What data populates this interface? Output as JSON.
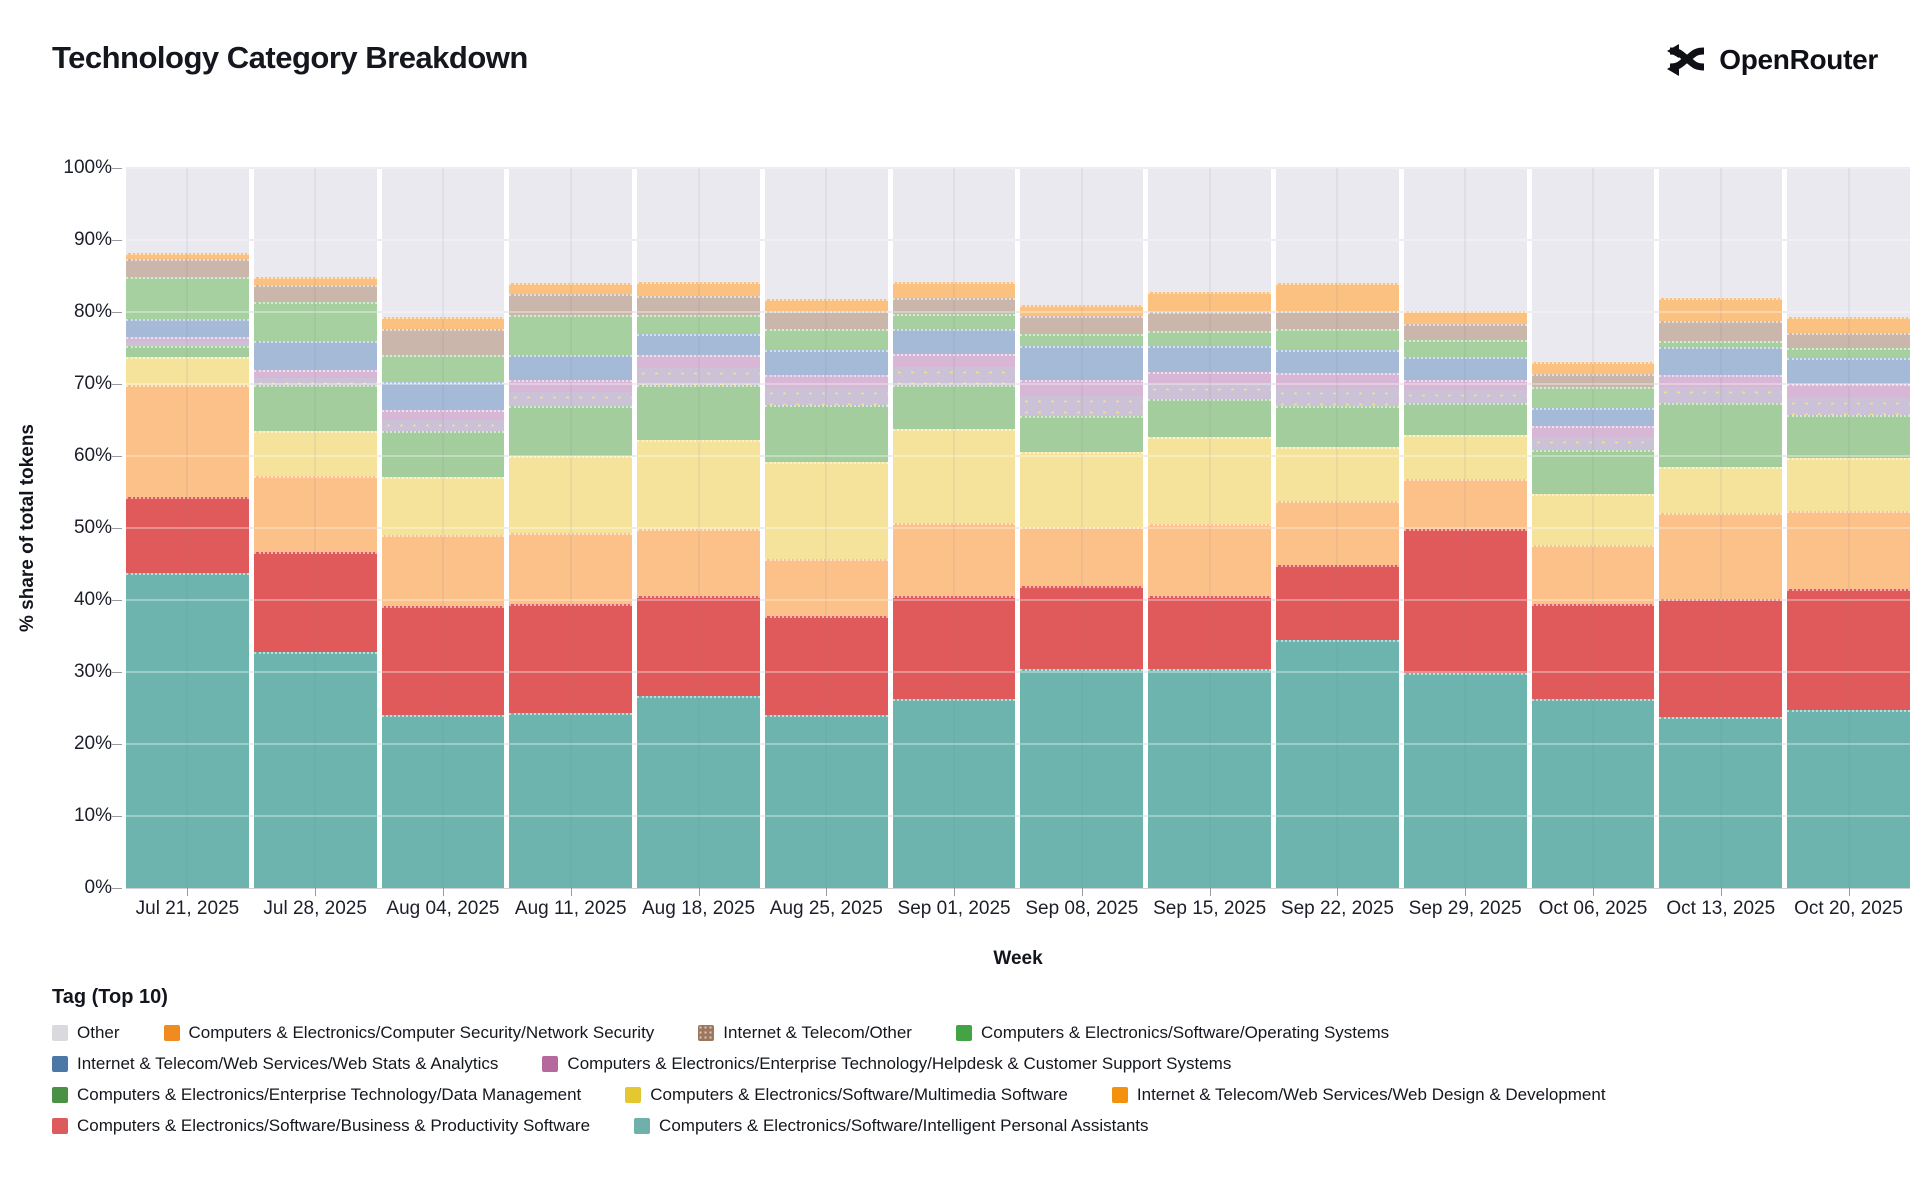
{
  "header": {
    "title": "Technology Category Breakdown",
    "brand": "OpenRouter"
  },
  "chart_data": {
    "type": "bar",
    "stacked": true,
    "unit": "percent",
    "title": "Technology Category Breakdown",
    "xlabel": "Week",
    "ylabel": "% share of total tokens",
    "ylim": [
      0,
      100
    ],
    "yticks": [
      "0%",
      "10%",
      "20%",
      "30%",
      "40%",
      "50%",
      "60%",
      "70%",
      "80%",
      "90%",
      "100%"
    ],
    "grid": true,
    "legend_position": "bottom",
    "categories": [
      "Jul 21, 2025",
      "Jul 28, 2025",
      "Aug 04, 2025",
      "Aug 11, 2025",
      "Aug 18, 2025",
      "Aug 25, 2025",
      "Sep 01, 2025",
      "Sep 08, 2025",
      "Sep 15, 2025",
      "Sep 22, 2025",
      "Sep 29, 2025",
      "Oct 06, 2025",
      "Oct 13, 2025",
      "Oct 20, 2025"
    ],
    "series": [
      {
        "id": "ipa",
        "name": "Computers & Electronics/Software/Intelligent Personal Assistants",
        "bar_color": "#6db4ae",
        "legend_color": "#6fb0ab",
        "values": [
          43.7,
          32.8,
          24.0,
          24.3,
          26.6,
          24.0,
          26.2,
          30.4,
          30.4,
          34.5,
          29.9,
          26.3,
          23.7,
          24.7
        ]
      },
      {
        "id": "bizprod",
        "name": "Computers & Electronics/Software/Business & Productivity Software",
        "bar_color": "#e05a5b",
        "legend_color": "#dd5b5c",
        "values": [
          10.6,
          13.9,
          15.1,
          15.2,
          14.0,
          13.8,
          14.4,
          11.5,
          10.2,
          10.4,
          19.9,
          13.2,
          16.5,
          16.8
        ]
      },
      {
        "id": "webdesign",
        "name": "Internet & Telecom/Web Services/Web Design & Development",
        "bar_color": "#fbc189",
        "legend_color": "#f2920f",
        "values": [
          15.5,
          10.5,
          9.9,
          9.8,
          9.2,
          7.9,
          10.1,
          8.3,
          10.0,
          8.8,
          7.0,
          8.1,
          11.9,
          10.8
        ]
      },
      {
        "id": "multimedia",
        "name": "Computers & Electronics/Software/Multimedia Software",
        "bar_color": "#f5e39c",
        "legend_color": "#e4c731",
        "values": [
          3.9,
          6.2,
          8.1,
          10.7,
          12.4,
          13.4,
          13.1,
          10.4,
          12.1,
          7.6,
          6.1,
          7.1,
          6.4,
          7.4
        ]
      },
      {
        "id": "datamgmt",
        "name": "Computers & Electronics/Enterprise Technology/Data Management",
        "bar_color": "#a4cd9e",
        "legend_color": "#4a9045",
        "values": [
          1.6,
          6.4,
          6.3,
          6.9,
          7.6,
          8.0,
          6.1,
          4.9,
          5.2,
          5.6,
          4.4,
          6.1,
          8.8,
          6.0
        ]
      },
      {
        "id": "helpdesk",
        "name": "Computers & Electronics/Enterprise Technology/Helpdesk & Customer Support Systems",
        "bar_color": "#d8b6d6",
        "legend_color": "#b5699c",
        "pattern": "dots",
        "values": [
          1.2,
          2.1,
          3.0,
          3.7,
          4.2,
          4.2,
          4.3,
          5.1,
          3.8,
          4.6,
          3.3,
          3.3,
          4.0,
          4.3
        ]
      },
      {
        "id": "webstats",
        "name": "Internet & Telecom/Web Services/Web Stats & Analytics",
        "bar_color": "#a4bad7",
        "legend_color": "#4c78a8",
        "values": [
          2.5,
          4.0,
          3.9,
          3.4,
          2.9,
          3.4,
          3.5,
          4.7,
          3.6,
          3.2,
          3.2,
          2.5,
          3.8,
          3.6
        ]
      },
      {
        "id": "os",
        "name": "Computers & Electronics/Software/Operating Systems",
        "bar_color": "#a6d09f",
        "legend_color": "#44a344",
        "values": [
          5.8,
          5.5,
          3.7,
          5.6,
          2.7,
          3.0,
          2.0,
          1.6,
          2.1,
          2.9,
          2.3,
          3.0,
          0.9,
          1.4
        ]
      },
      {
        "id": "ito",
        "name": "Internet & Telecom/Other",
        "bar_color": "#cab6ab",
        "legend_color": "#9d7660",
        "pattern": "dots",
        "values": [
          2.6,
          2.4,
          3.6,
          2.9,
          2.6,
          2.5,
          2.3,
          2.5,
          2.6,
          2.5,
          2.3,
          1.8,
          2.8,
          2.1
        ]
      },
      {
        "id": "netsec",
        "name": "Computers & Electronics/Computer Security/Network Security",
        "bar_color": "#fbc180",
        "legend_color": "#ef8b1f",
        "values": [
          0.8,
          1.1,
          1.7,
          1.5,
          1.9,
          1.6,
          2.2,
          1.6,
          2.8,
          3.9,
          1.7,
          1.6,
          3.1,
          2.2
        ]
      },
      {
        "id": "other",
        "name": "Other",
        "bar_color": "#e9e9ef",
        "legend_color": "#d9d9de",
        "values": [
          11.8,
          15.1,
          20.7,
          16.0,
          15.9,
          18.2,
          15.8,
          19.0,
          17.2,
          16.0,
          19.9,
          27.0,
          18.1,
          20.7
        ]
      }
    ]
  },
  "legend": {
    "title": "Tag (Top 10)",
    "rows": [
      [
        "other",
        "netsec",
        "ito",
        "os"
      ],
      [
        "webstats",
        "helpdesk"
      ],
      [
        "datamgmt",
        "multimedia",
        "webdesign"
      ],
      [
        "bizprod",
        "ipa"
      ]
    ]
  }
}
